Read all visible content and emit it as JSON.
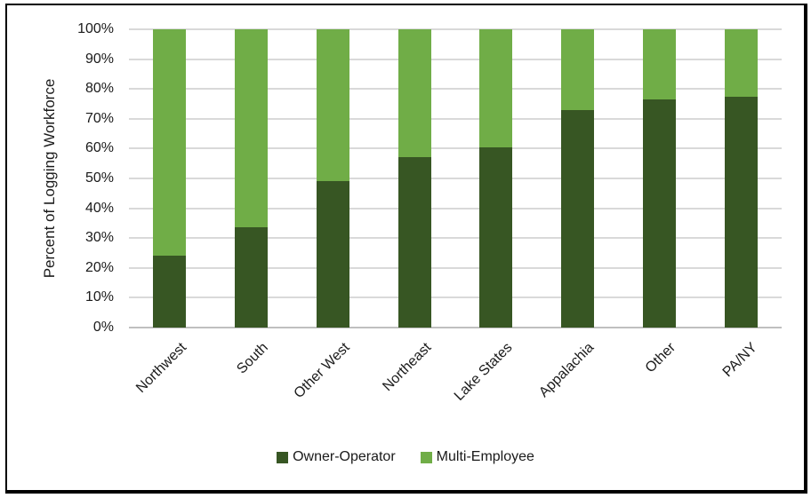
{
  "chart_data": {
    "type": "bar",
    "stacked": true,
    "stack_unit": "percent",
    "title": "",
    "xlabel": "",
    "ylabel": "Percent of Logging Workforce",
    "categories": [
      "Northwest",
      "South",
      "Other West",
      "Northeast",
      "Lake States",
      "Appalachia",
      "Other",
      "PA/NY"
    ],
    "series": [
      {
        "name": "Owner-Operator",
        "color": "#375623",
        "values": [
          24,
          33.5,
          49,
          57,
          60.5,
          73,
          76.5,
          77.5
        ]
      },
      {
        "name": "Multi-Employee",
        "color": "#70AD47",
        "values": [
          76,
          66.5,
          51,
          43,
          39.5,
          27,
          23.5,
          22.5
        ]
      }
    ],
    "ylim": [
      0,
      100
    ],
    "yticks": [
      "0%",
      "10%",
      "20%",
      "30%",
      "40%",
      "50%",
      "60%",
      "70%",
      "80%",
      "90%",
      "100%"
    ],
    "grid": true,
    "legend_position": "bottom"
  },
  "colors": {
    "owner_operator": "#375623",
    "multi_employee": "#70AD47",
    "gridline": "#D9D9D9",
    "axis_line": "#BFBFBF",
    "text": "#1a1a1a",
    "frame_border": "#000000",
    "background": "#FFFFFF"
  }
}
